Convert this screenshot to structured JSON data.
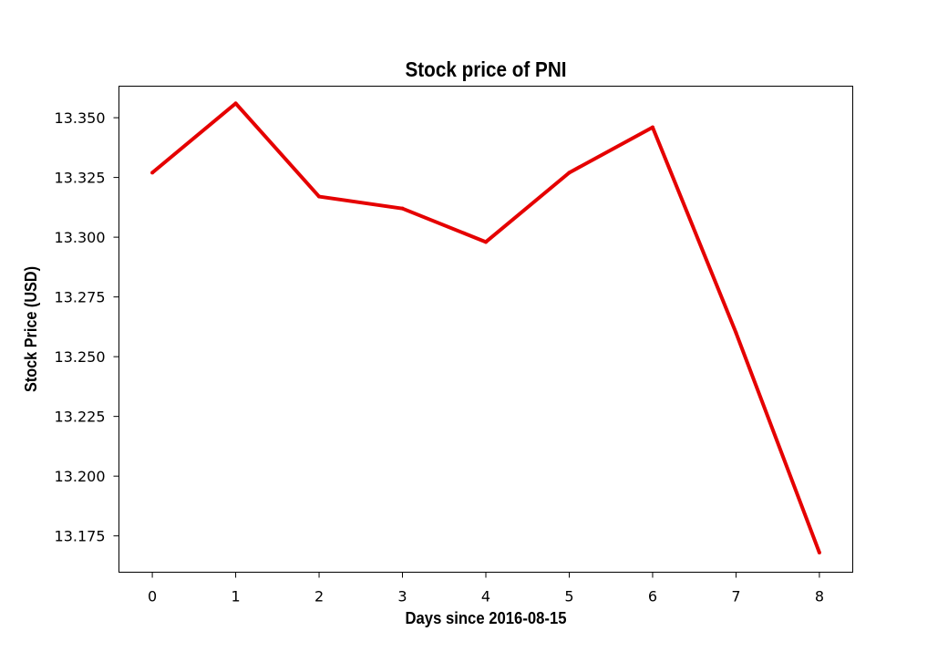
{
  "chart_data": {
    "type": "line",
    "title": "Stock price of PNI",
    "xlabel": "Days since 2016-08-15",
    "ylabel": "Stock Price (USD)",
    "x": [
      0,
      1,
      2,
      3,
      4,
      5,
      6,
      7,
      8
    ],
    "x_ticks": [
      "0",
      "1",
      "2",
      "3",
      "4",
      "5",
      "6",
      "7",
      "8"
    ],
    "y_ticks": [
      "13.175",
      "13.200",
      "13.225",
      "13.250",
      "13.275",
      "13.300",
      "13.325",
      "13.350"
    ],
    "xlim": [
      -0.4,
      8.4
    ],
    "ylim": [
      13.1598,
      13.3632
    ],
    "grid": false,
    "legend": "none",
    "series": [
      {
        "color": "#e50000",
        "values": [
          13.327,
          13.356,
          13.317,
          13.312,
          13.298,
          13.327,
          13.346,
          13.26,
          13.168
        ]
      }
    ]
  }
}
